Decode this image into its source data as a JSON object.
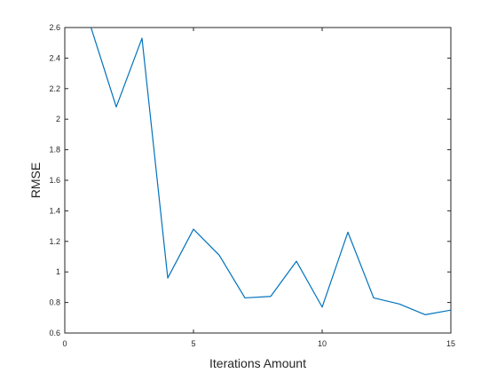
{
  "chart_data": {
    "type": "line",
    "title": "",
    "xlabel": "Iterations Amount",
    "ylabel": "RMSE",
    "xlim": [
      0,
      15
    ],
    "ylim": [
      0.6,
      2.6
    ],
    "xticks": [
      0,
      5,
      10,
      15
    ],
    "xtick_labels": [
      "0",
      "5",
      "10",
      "15"
    ],
    "yticks": [
      0.6,
      0.8,
      1.0,
      1.2,
      1.4,
      1.6,
      1.8,
      2.0,
      2.2,
      2.4,
      2.6
    ],
    "ytick_labels": [
      "0.6",
      "0.8",
      "1",
      "1.2",
      "1.4",
      "1.6",
      "1.8",
      "2",
      "2.2",
      "2.4",
      "2.6"
    ],
    "grid": false,
    "series": [
      {
        "color": "#0072bd",
        "x": [
          1,
          2,
          3,
          4,
          5,
          6,
          7,
          8,
          9,
          10,
          11,
          12,
          13,
          14,
          15
        ],
        "y": [
          2.61,
          2.08,
          2.53,
          0.96,
          1.28,
          1.11,
          0.83,
          0.84,
          1.07,
          0.77,
          1.26,
          0.83,
          0.79,
          0.72,
          0.75
        ]
      }
    ]
  }
}
